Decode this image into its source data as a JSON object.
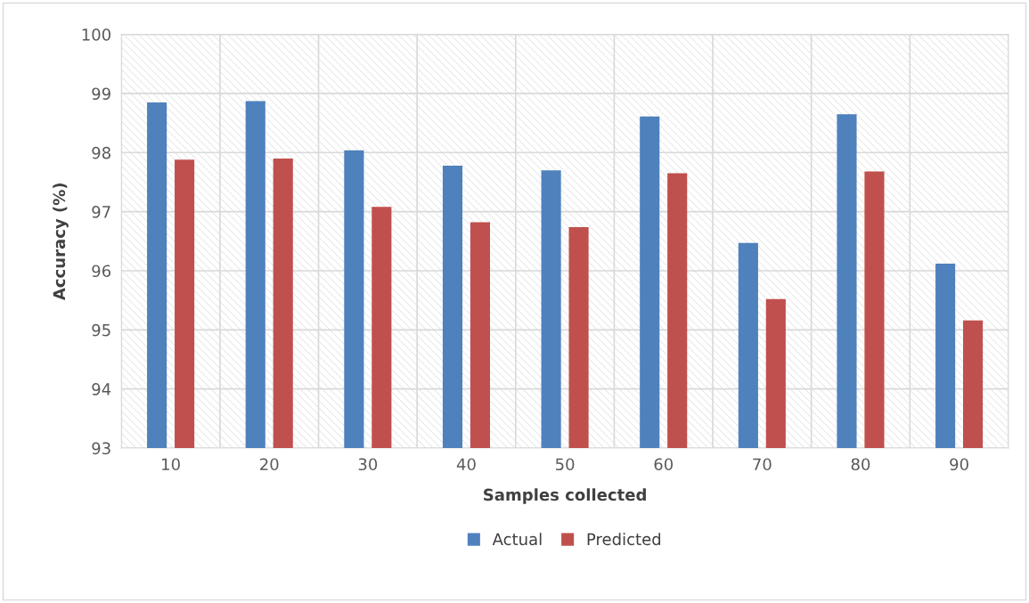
{
  "chart_data": {
    "type": "bar",
    "xlabel": "Samples collected",
    "ylabel": "Accuracy (%)",
    "categories": [
      "10",
      "20",
      "30",
      "40",
      "50",
      "60",
      "70",
      "80",
      "90"
    ],
    "series": [
      {
        "name": "Actual",
        "color": "#4f81bd",
        "values": [
          98.85,
          98.87,
          98.04,
          97.78,
          97.7,
          98.61,
          96.47,
          98.65,
          96.12
        ]
      },
      {
        "name": "Predicted",
        "color": "#c0504d",
        "values": [
          97.88,
          97.9,
          97.08,
          96.82,
          96.74,
          97.65,
          95.52,
          97.68,
          95.16
        ]
      }
    ],
    "ylim": [
      93,
      100
    ],
    "yticks": [
      93,
      94,
      95,
      96,
      97,
      98,
      99,
      100
    ],
    "grid": true,
    "legend": "bottom"
  }
}
